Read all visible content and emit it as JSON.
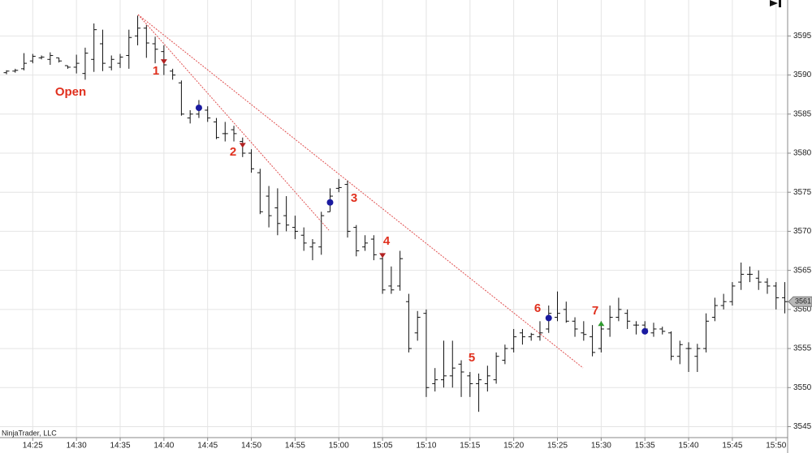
{
  "chart_data": {
    "type": "ohlc",
    "categories": [
      null,
      null,
      null,
      "14:25",
      null,
      null,
      null,
      null,
      "14:30",
      null,
      null,
      null,
      null,
      "14:35",
      null,
      null,
      null,
      null,
      "14:40",
      null,
      null,
      null,
      null,
      "14:45",
      null,
      null,
      null,
      null,
      "14:50",
      null,
      null,
      null,
      null,
      "14:55",
      null,
      null,
      null,
      null,
      "15:00",
      null,
      null,
      null,
      null,
      "15:05",
      null,
      null,
      null,
      null,
      "15:10",
      null,
      null,
      null,
      null,
      "15:15",
      null,
      null,
      null,
      null,
      "15:20",
      null,
      null,
      null,
      null,
      "15:25",
      null,
      null,
      null,
      null,
      "15:30",
      null,
      null,
      null,
      null,
      "15:35",
      null,
      null,
      null,
      null,
      "15:40",
      null,
      null,
      null,
      null,
      "15:45",
      null,
      null,
      null,
      null,
      "15:50",
      null
    ],
    "open": [
      3590.3,
      3590.5,
      3590.8,
      3591.8,
      3592.2,
      3592.0,
      3592.2,
      3591.2,
      3591.0,
      3590.2,
      3592.0,
      3594.0,
      3591.0,
      3591.5,
      3592.5,
      3595.0,
      3596.0,
      3594.0,
      3593.0,
      3590.5,
      3589.0,
      3584.5,
      3585.0,
      3585.5,
      3584.0,
      3582.5,
      3583.0,
      3581.5,
      3580.0,
      3577.5,
      3574.5,
      3573.0,
      3572.0,
      3570.5,
      3569.5,
      3568.0,
      3568.0,
      3572.5,
      3575.5,
      3576.0,
      3570.5,
      3568.0,
      3569.0,
      3566.5,
      3563.0,
      3563.0,
      3561.0,
      3557.0,
      3559.5,
      3550.5,
      3551.0,
      3551.5,
      3553.0,
      3551.5,
      3550.5,
      3550.5,
      3551.0,
      3553.5,
      3555.0,
      3557.0,
      3556.5,
      3556.5,
      3557.5,
      3559.0,
      3560.0,
      3558.5,
      3557.0,
      3556.5,
      3555.0,
      3557.5,
      3559.0,
      3559.5,
      3558.0,
      3558.0,
      3557.0,
      3557.5,
      3557.0,
      3554.0,
      3555.0,
      3554.0,
      3555.0,
      3559.0,
      3560.5,
      3561.0,
      3563.5,
      3564.5,
      3564.0,
      3563.5,
      3563.0,
      3561.5
    ],
    "high": [
      3590.6,
      3590.8,
      3592.8,
      3592.7,
      3592.5,
      3592.9,
      3592.2,
      3591.2,
      3592.6,
      3593.5,
      3596.6,
      3595.8,
      3592.5,
      3592.7,
      3595.8,
      3597.6,
      3596.4,
      3594.9,
      3593.8,
      3590.8,
      3589.3,
      3585.5,
      3586.8,
      3586.0,
      3584.5,
      3584.0,
      3583.5,
      3582.0,
      3580.5,
      3578.0,
      3575.8,
      3575.5,
      3574.5,
      3572.0,
      3570.5,
      3569.0,
      3572.5,
      3575.5,
      3576.7,
      3576.5,
      3570.8,
      3569.5,
      3569.5,
      3567.2,
      3565.5,
      3567.5,
      3562.0,
      3559.8,
      3560.0,
      3552.5,
      3556.0,
      3556.0,
      3553.5,
      3552.0,
      3551.8,
      3552.8,
      3554.5,
      3555.5,
      3557.5,
      3557.5,
      3557.0,
      3558.5,
      3560.5,
      3562.3,
      3561.0,
      3559.0,
      3558.5,
      3558.0,
      3558.5,
      3560.5,
      3561.5,
      3560.0,
      3558.5,
      3558.5,
      3558.3,
      3557.8,
      3557.2,
      3556.0,
      3555.8,
      3555.6,
      3559.5,
      3561.5,
      3562.0,
      3563.5,
      3566.0,
      3565.5,
      3565.0,
      3564.0,
      3563.5,
      3563.5
    ],
    "low": [
      3590.1,
      3590.3,
      3590.6,
      3591.5,
      3592.0,
      3591.3,
      3591.6,
      3590.8,
      3590.2,
      3589.4,
      3590.4,
      3590.5,
      3590.6,
      3590.9,
      3590.8,
      3593.8,
      3592.2,
      3591.5,
      3590.0,
      3589.4,
      3584.8,
      3583.8,
      3584.5,
      3584.0,
      3581.8,
      3581.5,
      3581.5,
      3579.5,
      3577.5,
      3572.2,
      3570.5,
      3569.5,
      3570.0,
      3569.0,
      3567.5,
      3566.3,
      3567.0,
      3572.5,
      3575.0,
      3569.2,
      3566.8,
      3567.5,
      3566.3,
      3562.0,
      3562.0,
      3562.4,
      3554.5,
      3556.0,
      3548.8,
      3549.5,
      3550.0,
      3550.0,
      3548.8,
      3548.8,
      3546.9,
      3549.5,
      3550.5,
      3553.0,
      3554.5,
      3555.5,
      3556.0,
      3556.0,
      3557.0,
      3558.5,
      3558.3,
      3556.5,
      3556.0,
      3554.0,
      3554.5,
      3556.5,
      3558.5,
      3557.5,
      3556.8,
      3557.2,
      3556.5,
      3556.8,
      3553.5,
      3553.0,
      3552.0,
      3552.0,
      3554.5,
      3558.5,
      3560.0,
      3560.5,
      3562.5,
      3563.5,
      3562.5,
      3562.0,
      3560.0,
      3559.5
    ],
    "close": [
      3590.5,
      3590.6,
      3591.5,
      3592.4,
      3592.3,
      3592.5,
      3591.8,
      3591.0,
      3591.5,
      3592.8,
      3595.8,
      3591.5,
      3592.0,
      3592.3,
      3594.8,
      3596.0,
      3594.1,
      3593.3,
      3591.3,
      3590.0,
      3585.0,
      3585.0,
      3586.0,
      3584.5,
      3582.0,
      3582.5,
      3582.5,
      3580.0,
      3578.0,
      3572.5,
      3572.0,
      3571.0,
      3570.8,
      3570.0,
      3568.5,
      3568.5,
      3572.0,
      3574.5,
      3575.6,
      3570.0,
      3567.5,
      3568.5,
      3567.0,
      3562.5,
      3562.5,
      3566.5,
      3555.0,
      3559.0,
      3550.0,
      3551.0,
      3551.5,
      3552.5,
      3552.0,
      3550.5,
      3551.0,
      3551.5,
      3554.0,
      3555.0,
      3556.5,
      3556.5,
      3556.8,
      3557.0,
      3559.5,
      3559.5,
      3558.5,
      3557.5,
      3556.8,
      3554.5,
      3557.5,
      3559.0,
      3560.0,
      3558.5,
      3558.0,
      3557.5,
      3557.5,
      3557.2,
      3554.0,
      3555.5,
      3555.0,
      3555.0,
      3558.5,
      3560.5,
      3561.0,
      3563.0,
      3564.5,
      3564.5,
      3563.5,
      3563.0,
      3561.5,
      3561.0
    ],
    "bar_color": "#111111",
    "markers": [
      {
        "shape": "down-triangle",
        "color": "#b22222",
        "values": [
          null,
          null,
          null,
          null,
          null,
          null,
          null,
          null,
          null,
          null,
          null,
          null,
          null,
          null,
          null,
          null,
          null,
          null,
          3591.7,
          null,
          null,
          null,
          null,
          null,
          null,
          null,
          null,
          3581.0,
          null,
          null,
          null,
          null,
          null,
          null,
          null,
          null,
          null,
          null,
          null,
          null,
          null,
          null,
          null,
          3566.9,
          null,
          null,
          null,
          null,
          null,
          null,
          null,
          null,
          null,
          null,
          null,
          null,
          null,
          null,
          null,
          null,
          null,
          null,
          null,
          null,
          null,
          null,
          null,
          null,
          null,
          null,
          null,
          null,
          null,
          null,
          null,
          null,
          null,
          null,
          null,
          null,
          null,
          null,
          null,
          null,
          null,
          null,
          null,
          null,
          null,
          null
        ]
      },
      {
        "shape": "dot",
        "color": "#1a1aa0",
        "values": [
          null,
          null,
          null,
          null,
          null,
          null,
          null,
          null,
          null,
          null,
          null,
          null,
          null,
          null,
          null,
          null,
          null,
          null,
          null,
          null,
          null,
          null,
          3585.8,
          null,
          null,
          null,
          null,
          null,
          null,
          null,
          null,
          null,
          null,
          null,
          null,
          null,
          null,
          3573.7,
          null,
          null,
          null,
          null,
          null,
          null,
          null,
          null,
          null,
          null,
          null,
          null,
          null,
          null,
          null,
          null,
          null,
          null,
          null,
          null,
          null,
          null,
          null,
          null,
          3558.9,
          null,
          null,
          null,
          null,
          null,
          null,
          null,
          null,
          null,
          null,
          3557.2,
          null,
          null,
          null,
          null,
          null,
          null,
          null,
          null,
          null,
          null,
          null,
          null,
          null,
          null,
          null,
          null
        ]
      },
      {
        "shape": "up-triangle",
        "color": "#2e9b2e",
        "values": [
          null,
          null,
          null,
          null,
          null,
          null,
          null,
          null,
          null,
          null,
          null,
          null,
          null,
          null,
          null,
          null,
          null,
          null,
          null,
          null,
          null,
          null,
          null,
          null,
          null,
          null,
          null,
          null,
          null,
          null,
          null,
          null,
          null,
          null,
          null,
          null,
          null,
          null,
          null,
          null,
          null,
          null,
          null,
          null,
          null,
          null,
          null,
          null,
          null,
          null,
          null,
          null,
          null,
          null,
          null,
          null,
          null,
          null,
          null,
          null,
          null,
          null,
          null,
          null,
          null,
          null,
          null,
          null,
          3558.2,
          null,
          null,
          null,
          null,
          null,
          null,
          null,
          null,
          null,
          null,
          null,
          null,
          null,
          null,
          null,
          null,
          null,
          null,
          null,
          null,
          null
        ]
      }
    ],
    "ylim": [
      3543.6,
      3599.6
    ],
    "yticks": [
      {
        "value": 3545,
        "label": "3545.0"
      },
      {
        "value": 3550,
        "label": "3550.0"
      },
      {
        "value": 3555,
        "label": "3555.0"
      },
      {
        "value": 3560,
        "label": "3560.0"
      },
      {
        "value": 3565,
        "label": "3565.0"
      },
      {
        "value": 3570,
        "label": "3570.0"
      },
      {
        "value": 3575,
        "label": "3575.0"
      },
      {
        "value": 3580,
        "label": "3580.0"
      },
      {
        "value": 3585,
        "label": "3585.0"
      },
      {
        "value": 3590,
        "label": "3590.0"
      },
      {
        "value": 3595,
        "label": "3595.0"
      }
    ],
    "last_price": 3561,
    "grid": true,
    "annotations": [
      "Open",
      "1",
      "2",
      "3",
      "4",
      "5",
      "6",
      "7"
    ],
    "watermark": "NinjaTrader, LLC"
  }
}
